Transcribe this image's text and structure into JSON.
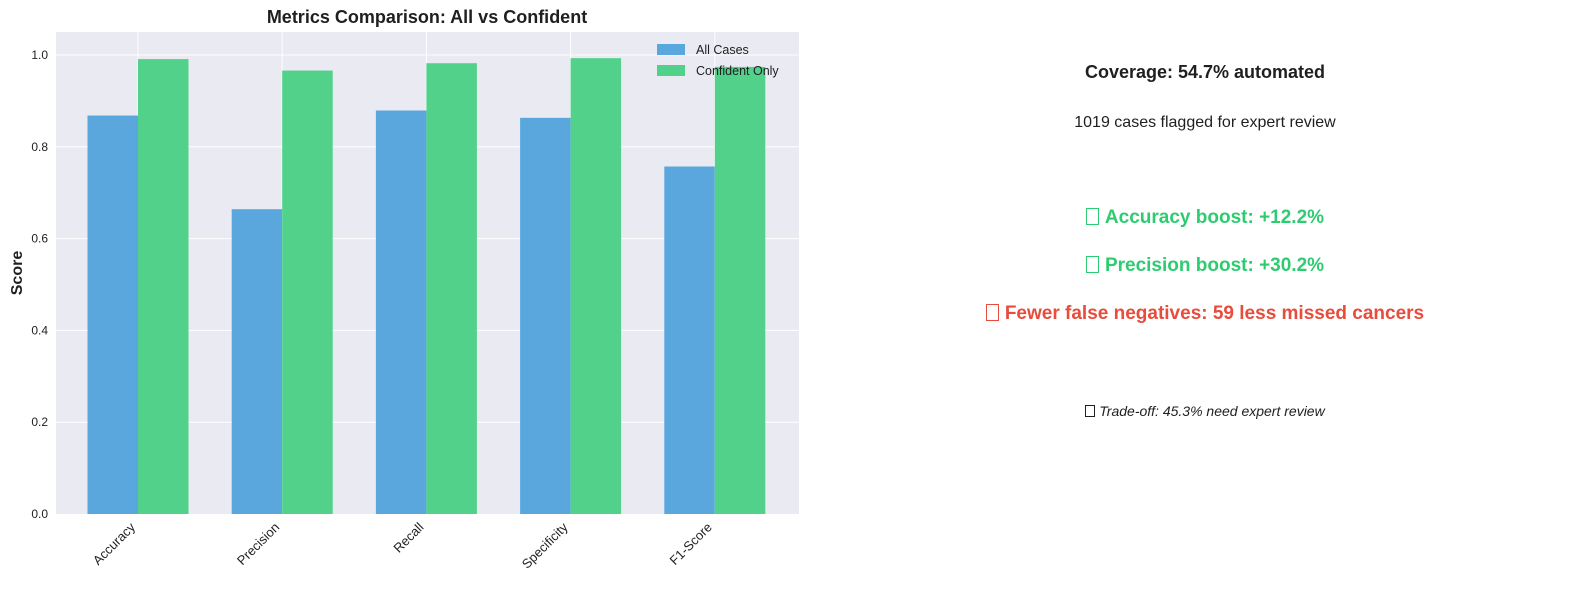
{
  "chart_data": {
    "type": "bar",
    "title": "Metrics Comparison: All vs Confident",
    "xlabel": "",
    "ylabel": "Score",
    "ylim": [
      0,
      1.05
    ],
    "yticks": [
      0.0,
      0.2,
      0.4,
      0.6,
      0.8,
      1.0
    ],
    "ytick_labels": [
      "0.0",
      "0.2",
      "0.4",
      "0.6",
      "0.8",
      "1.0"
    ],
    "grid": true,
    "legend_position": "top-right",
    "categories": [
      "Accuracy",
      "Precision",
      "Recall",
      "Specificity",
      "F1-Score"
    ],
    "series": [
      {
        "name": "All Cases",
        "color": "#5aa7de",
        "values": [
          0.868,
          0.664,
          0.879,
          0.863,
          0.757
        ]
      },
      {
        "name": "Confident Only",
        "color": "#52d18a",
        "values": [
          0.991,
          0.966,
          0.982,
          0.993,
          0.974
        ]
      }
    ]
  },
  "summary": {
    "coverage": "Coverage: 54.7% automated",
    "flagged": "1019 cases flagged for expert review",
    "accuracy_boost": "Accuracy boost: +12.2%",
    "precision_boost": "Precision boost: +30.2%",
    "false_negatives": "Fewer false negatives: 59 less missed cancers",
    "tradeoff": "Trade-off: 45.3% need expert review",
    "boost_color": "#2ecc71",
    "alert_color": "#e74c3c",
    "icons": {
      "accuracy_boost": "missing-glyph-icon",
      "precision_boost": "missing-glyph-icon",
      "false_negatives": "missing-glyph-icon",
      "tradeoff": "missing-glyph-icon"
    }
  }
}
